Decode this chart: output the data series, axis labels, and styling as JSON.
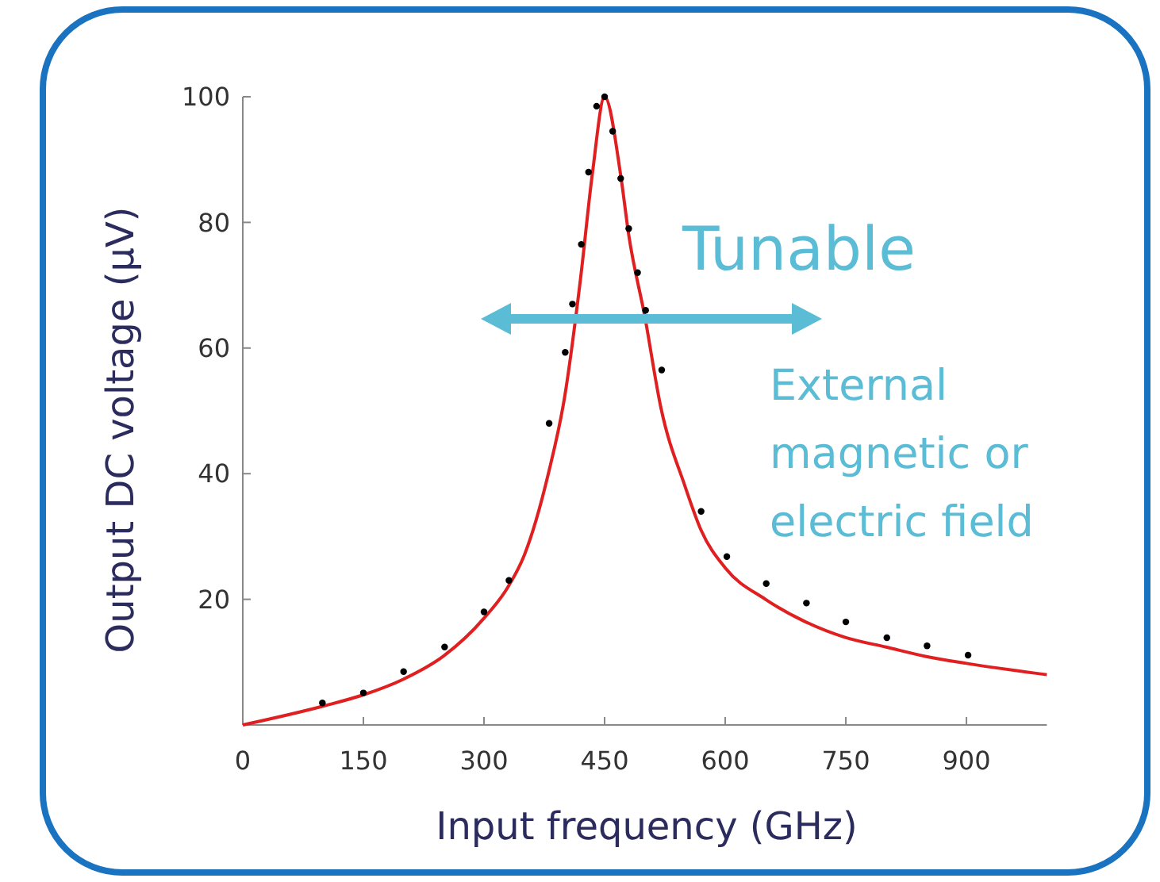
{
  "chart_data": {
    "type": "scatter",
    "xlabel": "Input frequency (GHz)",
    "ylabel": "Output DC voltage (μV)",
    "xlim": [
      0,
      1000
    ],
    "ylim": [
      0,
      100
    ],
    "xticks": [
      0,
      150,
      300,
      450,
      600,
      750,
      900
    ],
    "yticks": [
      {
        "value": 0,
        "label": null
      },
      20,
      40,
      60,
      80,
      100
    ],
    "grid": false,
    "annotations": [
      "Tunable",
      "External magnetic or electric field"
    ],
    "series": [
      {
        "marker": "circle",
        "color": "#000000",
        "x": [
          99,
          150,
          200,
          251,
          300,
          331,
          381,
          401,
          410,
          421,
          430,
          440,
          450,
          460,
          470,
          480,
          491,
          501,
          521,
          570,
          602,
          651,
          701,
          750,
          801,
          851,
          902
        ],
        "values": [
          3.5,
          5.1,
          8.5,
          12.4,
          18,
          23,
          48,
          59.3,
          67,
          76.5,
          88,
          98.5,
          100,
          94.5,
          87,
          79,
          72,
          66,
          56.5,
          34,
          26.8,
          22.5,
          19.4,
          16.4,
          13.9,
          12.6,
          11.1
        ]
      },
      {
        "type": "line",
        "marker": "none",
        "color": "#e02020",
        "x": [
          0,
          100,
          150,
          200,
          250,
          300,
          330,
          350,
          380,
          400,
          420,
          435,
          450,
          470,
          480,
          500,
          520,
          550,
          570,
          600,
          650,
          700,
          750,
          800,
          850,
          900,
          1000
        ],
        "values": [
          0,
          3,
          4.8,
          7.3,
          11,
          17,
          22,
          27,
          40,
          52,
          71,
          88,
          100,
          87.5,
          78,
          65,
          50.5,
          38,
          31,
          25,
          20,
          16.4,
          13.9,
          12.4,
          10.9,
          9.8,
          8
        ]
      }
    ]
  }
}
